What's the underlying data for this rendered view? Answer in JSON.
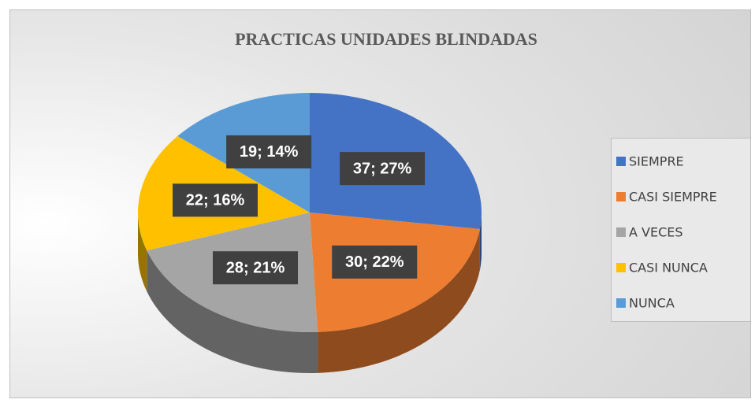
{
  "chart_data": {
    "type": "pie",
    "title": "PRACTICAS UNIDADES BLINDADAS",
    "categories": [
      "SIEMPRE",
      "CASI SIEMPRE",
      "A VECES",
      "CASI NUNCA",
      "NUNCA"
    ],
    "values": [
      37,
      30,
      28,
      22,
      19
    ],
    "value_labels": [
      "37; 27%",
      "30; 22%",
      "28; 21%",
      "22; 16%",
      "19; 14%"
    ],
    "colors": [
      "#4472c4",
      "#ed7d31",
      "#a5a5a5",
      "#ffc000",
      "#5b9bd5"
    ],
    "legend": "right"
  }
}
